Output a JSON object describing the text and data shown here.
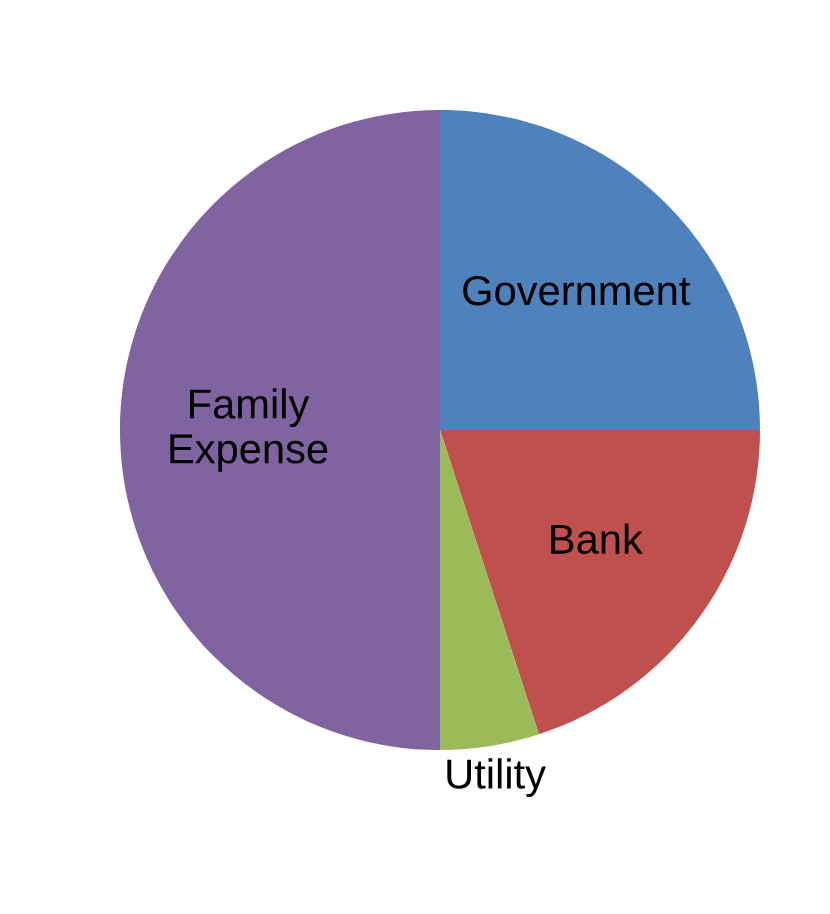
{
  "chart_data": {
    "type": "pie",
    "categories": [
      "Government",
      "Bank",
      "Utility",
      "Family Expense"
    ],
    "values": [
      25,
      20,
      5,
      50
    ],
    "colors": [
      "#4f81bd",
      "#c0504d",
      "#9bbb59",
      "#8064a2"
    ],
    "legend": false
  }
}
